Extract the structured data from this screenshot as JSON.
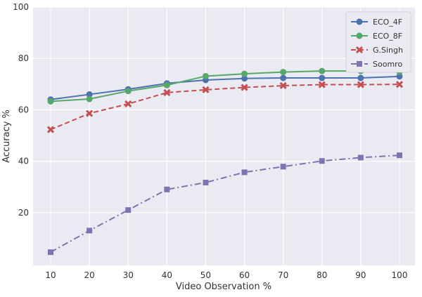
{
  "chart_data": {
    "type": "line",
    "title": "",
    "xlabel": "Video Observation %",
    "ylabel": "Accuracy %",
    "x": [
      10,
      20,
      30,
      40,
      50,
      60,
      70,
      80,
      90,
      100
    ],
    "xticks": [
      "10",
      "20",
      "30",
      "40",
      "50",
      "60",
      "70",
      "80",
      "90",
      "100"
    ],
    "yticks": [
      "20",
      "40",
      "60",
      "80",
      "100"
    ],
    "ylim": [
      0,
      100
    ],
    "xlim": [
      5.5,
      104.5
    ],
    "grid": true,
    "legend_position": "top-right",
    "series": [
      {
        "name": "ECO_4F",
        "color": "#4c72b0",
        "marker": "circle",
        "dash": "solid",
        "values": [
          64.0,
          66.0,
          68.0,
          70.3,
          71.6,
          72.2,
          72.4,
          72.4,
          72.4,
          73.0
        ]
      },
      {
        "name": "ECO_8F",
        "color": "#55a868",
        "marker": "circle",
        "dash": "solid",
        "values": [
          63.3,
          64.2,
          67.3,
          69.6,
          73.1,
          74.0,
          74.7,
          75.1,
          75.1,
          74.8
        ]
      },
      {
        "name": "G.Singh",
        "color": "#c44e52",
        "marker": "x",
        "dash": "dashed",
        "values": [
          52.3,
          58.6,
          62.3,
          66.7,
          67.8,
          68.7,
          69.4,
          69.8,
          69.8,
          69.9
        ]
      },
      {
        "name": "Soomro",
        "color": "#8172b2",
        "marker": "square",
        "dash": "dashdot",
        "values": [
          4.6,
          13.0,
          21.0,
          29.0,
          31.7,
          35.7,
          37.9,
          40.1,
          41.4,
          42.3
        ]
      }
    ]
  }
}
